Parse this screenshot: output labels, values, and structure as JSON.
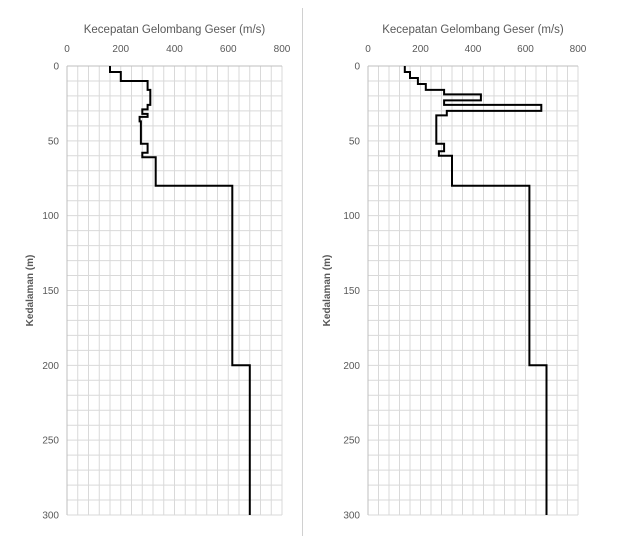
{
  "colors": {
    "profile": "#000000",
    "grid": "#d9d9d9",
    "axis": "#bfbfbf",
    "text": "#595959"
  },
  "chart_data": [
    {
      "type": "line",
      "title": "Kecepatan Gelombang Geser (m/s)",
      "ylabel": "Kedalaman (m)",
      "xlabel": "",
      "xlim": [
        0,
        800
      ],
      "ylim": [
        0,
        300
      ],
      "y_inverted": true,
      "x_axis_position": "top",
      "x_ticks": [
        "0",
        "200",
        "400",
        "600",
        "800"
      ],
      "y_ticks": [
        "0",
        "50",
        "100",
        "150",
        "200",
        "250",
        "300"
      ],
      "grid": true,
      "series": [
        {
          "profile": [
            [
              160,
              0
            ],
            [
              160,
              4
            ],
            [
              200,
              4
            ],
            [
              200,
              10
            ],
            [
              300,
              10
            ],
            [
              300,
              16
            ],
            [
              310,
              16
            ],
            [
              310,
              26
            ],
            [
              300,
              26
            ],
            [
              300,
              29
            ],
            [
              280,
              29
            ],
            [
              280,
              32
            ],
            [
              300,
              32
            ],
            [
              300,
              34
            ],
            [
              270,
              34
            ],
            [
              270,
              37
            ],
            [
              275,
              37
            ],
            [
              275,
              52
            ],
            [
              300,
              52
            ],
            [
              300,
              58
            ],
            [
              280,
              58
            ],
            [
              280,
              61
            ],
            [
              330,
              61
            ],
            [
              330,
              80
            ],
            [
              615,
              80
            ],
            [
              615,
              200
            ],
            [
              680,
              200
            ],
            [
              680,
              300
            ]
          ]
        }
      ]
    },
    {
      "type": "line",
      "title": "Kecepatan Gelombang Geser (m/s)",
      "ylabel": "Kedalaman (m)",
      "xlabel": "",
      "xlim": [
        0,
        800
      ],
      "ylim": [
        0,
        300
      ],
      "y_inverted": true,
      "x_axis_position": "top",
      "x_ticks": [
        "0",
        "200",
        "400",
        "600",
        "800"
      ],
      "y_ticks": [
        "0",
        "50",
        "100",
        "150",
        "200",
        "250",
        "300"
      ],
      "grid": true,
      "series": [
        {
          "profile": [
            [
              140,
              0
            ],
            [
              140,
              4
            ],
            [
              160,
              4
            ],
            [
              160,
              8
            ],
            [
              190,
              8
            ],
            [
              190,
              12
            ],
            [
              220,
              12
            ],
            [
              220,
              16
            ],
            [
              290,
              16
            ],
            [
              290,
              19
            ],
            [
              430,
              19
            ],
            [
              430,
              23
            ],
            [
              290,
              23
            ],
            [
              290,
              26
            ],
            [
              660,
              26
            ],
            [
              660,
              30
            ],
            [
              300,
              30
            ],
            [
              300,
              33
            ],
            [
              260,
              33
            ],
            [
              260,
              52
            ],
            [
              290,
              52
            ],
            [
              290,
              57
            ],
            [
              270,
              57
            ],
            [
              270,
              60
            ],
            [
              320,
              60
            ],
            [
              320,
              80
            ],
            [
              615,
              80
            ],
            [
              615,
              200
            ],
            [
              680,
              200
            ],
            [
              680,
              300
            ]
          ]
        }
      ]
    }
  ]
}
